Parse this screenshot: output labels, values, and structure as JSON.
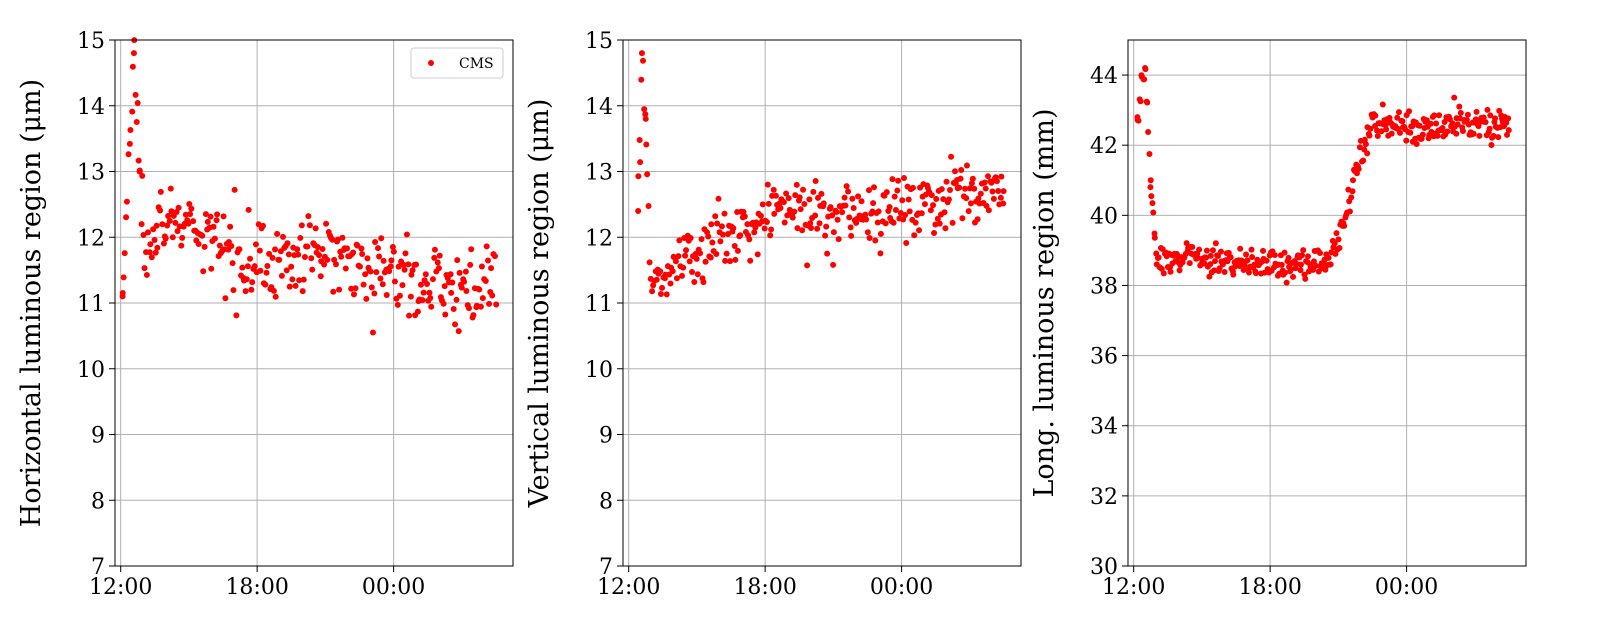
{
  "colors": {
    "marker": "#ff0000",
    "grid": "#b0b0b0",
    "frame": "#000000",
    "background": "#ffffff"
  },
  "chart_data": [
    {
      "type": "scatter",
      "ylabel": "Horizontal luminous region (μm)",
      "xlabel": "",
      "x_ticks": [
        "12:00",
        "18:00",
        "00:00"
      ],
      "x_range": [
        "2023-01-01T11:45",
        "2023-01-02T05:15"
      ],
      "ylim": [
        7,
        15
      ],
      "y_ticks": [
        7,
        8,
        9,
        10,
        11,
        12,
        13,
        14,
        15
      ],
      "grid": true,
      "legend": {
        "placement": "top-right",
        "entries": [
          "CMS"
        ]
      },
      "series": [
        {
          "name": "CMS",
          "trend": [
            [
              "2023-01-01T12:05",
              11.1
            ],
            [
              "2023-01-01T12:35",
              14.8
            ],
            [
              "2023-01-01T12:50",
              13.0
            ],
            [
              "2023-01-01T13:00",
              12.1
            ],
            [
              "2023-01-01T14:00",
              12.3
            ],
            [
              "2023-01-01T15:00",
              12.1
            ],
            [
              "2023-01-01T16:00",
              11.9
            ],
            [
              "2023-01-01T17:00",
              11.8
            ],
            [
              "2023-01-01T18:00",
              11.7
            ],
            [
              "2023-01-01T19:00",
              11.6
            ],
            [
              "2023-01-01T20:00",
              11.7
            ],
            [
              "2023-01-01T21:00",
              11.75
            ],
            [
              "2023-01-01T22:00",
              11.8
            ],
            [
              "2023-01-01T23:00",
              11.5
            ],
            [
              "2023-01-02T00:00",
              11.45
            ],
            [
              "2023-01-02T01:00",
              11.35
            ],
            [
              "2023-01-02T02:00",
              11.3
            ],
            [
              "2023-01-02T03:00",
              11.2
            ],
            [
              "2023-01-02T04:30",
              11.3
            ]
          ],
          "spread": 0.28,
          "count": 320
        }
      ]
    },
    {
      "type": "scatter",
      "ylabel": "Vertical luminous region (μm)",
      "xlabel": "",
      "x_ticks": [
        "12:00",
        "18:00",
        "00:00"
      ],
      "x_range": [
        "2023-01-01T11:45",
        "2023-01-02T05:15"
      ],
      "ylim": [
        7,
        15
      ],
      "y_ticks": [
        7,
        8,
        9,
        10,
        11,
        12,
        13,
        14,
        15
      ],
      "grid": true,
      "legend": null,
      "series": [
        {
          "name": "",
          "trend": [
            [
              "2023-01-01T12:25",
              12.4
            ],
            [
              "2023-01-01T12:35",
              14.8
            ],
            [
              "2023-01-01T12:45",
              13.8
            ],
            [
              "2023-01-01T13:00",
              11.0
            ],
            [
              "2023-01-01T13:30",
              11.5
            ],
            [
              "2023-01-01T14:00",
              11.6
            ],
            [
              "2023-01-01T15:00",
              11.8
            ],
            [
              "2023-01-01T16:00",
              12.0
            ],
            [
              "2023-01-01T17:00",
              12.1
            ],
            [
              "2023-01-01T18:00",
              12.3
            ],
            [
              "2023-01-01T19:00",
              12.5
            ],
            [
              "2023-01-01T20:00",
              12.45
            ],
            [
              "2023-01-01T21:00",
              12.4
            ],
            [
              "2023-01-01T22:00",
              12.4
            ],
            [
              "2023-01-01T23:00",
              12.4
            ],
            [
              "2023-01-02T00:00",
              12.45
            ],
            [
              "2023-01-02T01:00",
              12.55
            ],
            [
              "2023-01-02T02:00",
              12.6
            ],
            [
              "2023-01-02T03:00",
              12.65
            ],
            [
              "2023-01-02T04:30",
              12.8
            ]
          ],
          "spread": 0.25,
          "count": 320
        }
      ]
    },
    {
      "type": "scatter",
      "ylabel": "Long. luminous region (mm)",
      "xlabel": "",
      "x_ticks": [
        "12:00",
        "18:00",
        "00:00"
      ],
      "x_range": [
        "2023-01-01T11:45",
        "2023-01-02T05:15"
      ],
      "ylim": [
        30,
        45
      ],
      "y_ticks": [
        30,
        32,
        34,
        36,
        38,
        40,
        42,
        44
      ],
      "grid": true,
      "legend": null,
      "series": [
        {
          "name": "",
          "trend": [
            [
              "2023-01-01T12:10",
              42.8
            ],
            [
              "2023-01-01T12:30",
              44.2
            ],
            [
              "2023-01-01T12:45",
              41.0
            ],
            [
              "2023-01-01T13:00",
              38.8
            ],
            [
              "2023-01-01T15:00",
              38.8
            ],
            [
              "2023-01-01T17:00",
              38.6
            ],
            [
              "2023-01-01T18:00",
              38.55
            ],
            [
              "2023-01-01T19:00",
              38.6
            ],
            [
              "2023-01-01T20:30",
              38.7
            ],
            [
              "2023-01-01T21:00",
              39.2
            ],
            [
              "2023-01-01T21:30",
              40.5
            ],
            [
              "2023-01-01T22:00",
              41.8
            ],
            [
              "2023-01-01T22:30",
              42.6
            ],
            [
              "2023-01-02T00:00",
              42.55
            ],
            [
              "2023-01-02T01:00",
              42.5
            ],
            [
              "2023-01-02T02:00",
              42.6
            ],
            [
              "2023-01-02T03:00",
              42.55
            ],
            [
              "2023-01-02T04:30",
              42.65
            ]
          ],
          "spread": 0.22,
          "count": 380
        }
      ]
    }
  ]
}
